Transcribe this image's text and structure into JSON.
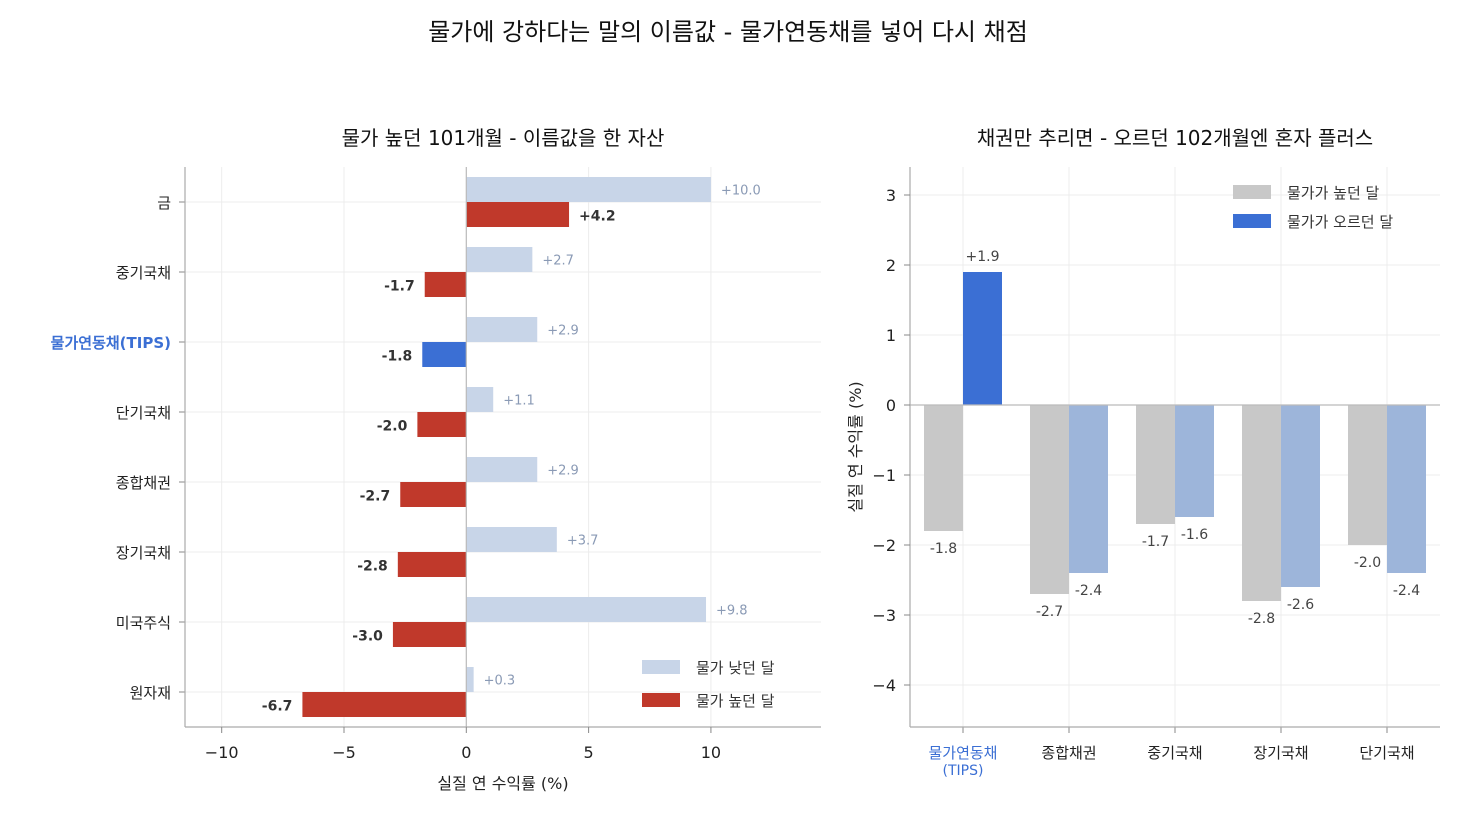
{
  "suptitle": "물가에 강하다는 말의 이름값 - 물가연동채를 넣어 다시 채점",
  "chart_data": [
    {
      "type": "bar",
      "orientation": "horizontal",
      "title": "물가 높던 101개월 - 이름값을 한 자산",
      "xlabel": "실질 연 수익률 (%)",
      "ylabel": "",
      "xlim": [
        -11.5,
        14.5
      ],
      "xticks": [
        -10,
        -5,
        0,
        5,
        10
      ],
      "grid": true,
      "legend_position": "lower-right",
      "highlight_category": "물가연동채(TIPS)",
      "categories": [
        "금",
        "중기국채",
        "물가연동채(TIPS)",
        "단기국채",
        "종합채권",
        "장기국채",
        "미국주식",
        "원자재"
      ],
      "series": [
        {
          "name": "물가 낮던 달",
          "values": [
            10.0,
            2.7,
            2.9,
            1.1,
            2.9,
            3.7,
            9.8,
            0.3
          ],
          "color": "#c8d5e8"
        },
        {
          "name": "물가 높던 달",
          "values": [
            4.2,
            -1.7,
            -1.8,
            -2.0,
            -2.7,
            -2.8,
            -3.0,
            -6.7
          ],
          "color": "#c0392b",
          "highlight_color": "#3b6fd4"
        }
      ],
      "value_labels_low": [
        "+10.0",
        "+2.7",
        "+2.9",
        "+1.1",
        "+2.9",
        "+3.7",
        "+9.8",
        "+0.3"
      ],
      "value_labels_high": [
        "+4.2",
        "-1.7",
        "-1.8",
        "-2.0",
        "-2.7",
        "-2.8",
        "-3.0",
        "-6.7"
      ]
    },
    {
      "type": "bar",
      "orientation": "vertical",
      "title": "채권만 추리면 - 오르던 102개월엔 혼자 플러스",
      "xlabel": "",
      "ylabel": "실질 연 수익률 (%)",
      "ylim": [
        -4.6,
        3.4
      ],
      "yticks": [
        -4,
        -3,
        -2,
        -1,
        0,
        1,
        2,
        3
      ],
      "grid": true,
      "legend_position": "top-right",
      "highlight_category_index": 0,
      "categories": [
        "물가연동채\n(TIPS)",
        "종합채권",
        "중기국채",
        "장기국채",
        "단기국채"
      ],
      "series": [
        {
          "name": "물가가 높던 달",
          "values": [
            -1.8,
            -2.7,
            -1.7,
            -2.8,
            -2.0
          ],
          "color": "#c8c8c8"
        },
        {
          "name": "물가가 오르던 달",
          "values": [
            1.9,
            -2.4,
            -1.6,
            -2.6,
            -2.4
          ],
          "color": "#9db5da",
          "highlight_color": "#3b6fd4"
        }
      ],
      "value_labels_a": [
        "-1.8",
        "-2.7",
        "-1.7",
        "-2.8",
        "-2.0"
      ],
      "value_labels_b": [
        "+1.9",
        "-2.4",
        "-1.6",
        "-2.6",
        "-2.4"
      ]
    }
  ]
}
